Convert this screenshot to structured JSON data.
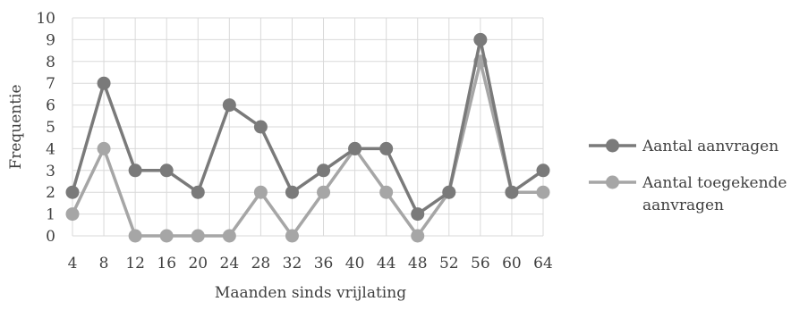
{
  "chart_data": {
    "type": "line",
    "title": "",
    "xlabel": "Maanden sinds vrijlating",
    "ylabel": "Frequentie",
    "ylim": [
      0,
      10
    ],
    "yticks": [
      "0",
      "1",
      "2",
      "3",
      "4",
      "5",
      "6",
      "7",
      "8",
      "9",
      "10"
    ],
    "categories": [
      "4",
      "8",
      "12",
      "16",
      "20",
      "24",
      "28",
      "32",
      "36",
      "40",
      "44",
      "48",
      "52",
      "56",
      "60",
      "64"
    ],
    "grid": true,
    "legend_position": "right",
    "series": [
      {
        "name": "Aantal aanvragen",
        "legend_lines": [
          "Aantal aanvragen"
        ],
        "color": "#7a7a7a",
        "values": [
          2,
          7,
          3,
          3,
          2,
          6,
          5,
          2,
          3,
          4,
          4,
          1,
          2,
          9,
          2,
          3
        ]
      },
      {
        "name": "Aantal toegekende aanvragen",
        "legend_lines": [
          "Aantal toegekende",
          "aanvragen"
        ],
        "color": "#a6a6a6",
        "values": [
          1,
          4,
          0,
          0,
          0,
          0,
          2,
          0,
          2,
          4,
          2,
          0,
          2,
          8,
          2,
          2
        ]
      }
    ]
  }
}
